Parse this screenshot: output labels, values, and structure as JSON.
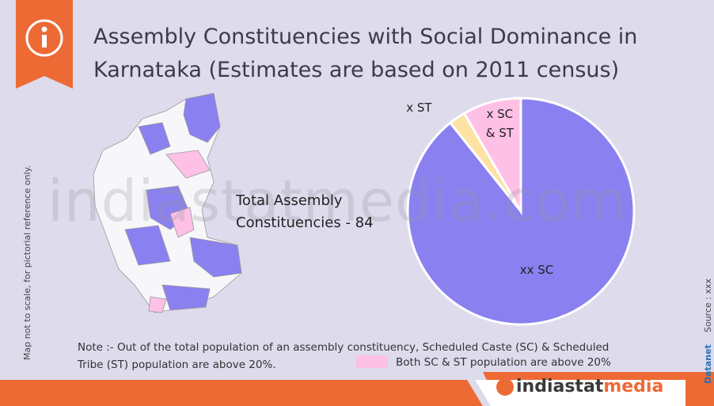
{
  "chart_data": {
    "type": "pie",
    "title": "Assembly Constituencies with Social Dominance in Karnataka (Estimates are based on 2011 census)",
    "categories": [
      "xx SC",
      "x ST",
      "x SC & ST"
    ],
    "values": [
      75,
      2,
      7
    ],
    "colors": [
      "#8b80f0",
      "#fde2a4",
      "#ffc0e6"
    ],
    "annotation": "Total Assembly Constituencies - 84",
    "note": "Note :- Out of the total population of an assembly constituency, Scheduled Caste (SC) & Scheduled Tribe (ST) population are above  20%.",
    "legend_note": "Both SC & ST population are above 20%",
    "side_note": "Map not to scale, for pictorial reference only.",
    "source": "Source : xxx",
    "credit": "Datanet",
    "watermark": "indiastatmedia.com",
    "logo_parts": [
      "indiastat",
      "media"
    ]
  }
}
